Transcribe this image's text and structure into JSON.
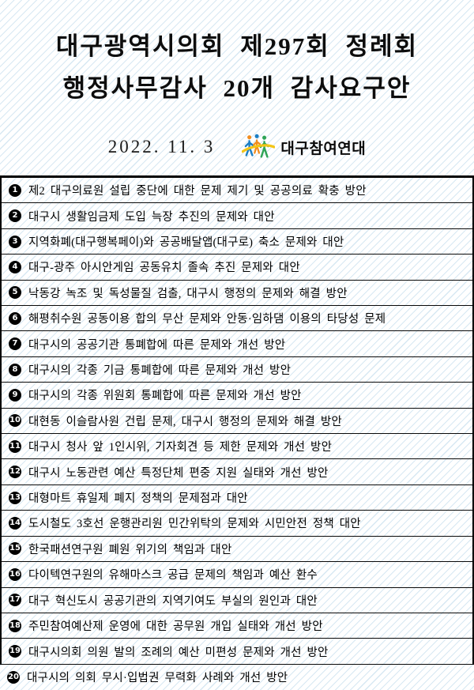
{
  "header": {
    "title_line1": "대구광역시의회 제297회 정례회",
    "title_line2": "행정사무감사 20개 감사요구안",
    "date": "2022. 11. 3",
    "logo_text": "대구참여연대"
  },
  "colors": {
    "background_stripe": "#d7e8f3",
    "table_border": "#000000",
    "badge_fill": "#000000",
    "badge_text": "#ffffff",
    "logo_blue": "#1c7fc5",
    "logo_green": "#2fa457",
    "logo_orange": "#f28c1e",
    "logo_yellow": "#f3c517"
  },
  "items": [
    {
      "number": "1",
      "text": "제2 대구의료원 설립 중단에 대한 문제 제기 및 공공의료 확충 방안"
    },
    {
      "number": "2",
      "text": "대구시 생활임금제 도입 늑장 추진의 문제와 대안"
    },
    {
      "number": "3",
      "text": "지역화폐(대구행복페이)와 공공배달앱(대구로) 축소 문제와 대안"
    },
    {
      "number": "4",
      "text": "대구-광주 아시안게임 공동유치 졸속 추진 문제와 대안"
    },
    {
      "number": "5",
      "text": "낙동강 녹조 및 독성물질 검출, 대구시 행정의 문제와 해결 방안"
    },
    {
      "number": "6",
      "text": "해평취수원 공동이용 합의 무산 문제와 안동·임하댐 이용의 타당성 문제"
    },
    {
      "number": "7",
      "text": "대구시의 공공기관 통폐합에 따른 문제와 개선 방안"
    },
    {
      "number": "8",
      "text": "대구시의 각종 기금 통폐합에 따른 문제와 개선 방안"
    },
    {
      "number": "9",
      "text": "대구시의 각종 위원회 통폐합에 따른 문제와 개선 방안"
    },
    {
      "number": "10",
      "text": "대현동 이슬람사원 건립 문제, 대구시 행정의 문제와 해결 방안"
    },
    {
      "number": "11",
      "text": "대구시 청사 앞 1인시위, 기자회견 등 제한 문제와 개선 방안"
    },
    {
      "number": "12",
      "text": "대구시 노동관련 예산 특정단체 편중 지원 실태와 개선 방안"
    },
    {
      "number": "13",
      "text": "대형마트 휴일제 폐지 정책의 문제점과 대안"
    },
    {
      "number": "14",
      "text": "도시철도 3호선 운행관리원 민간위탁의 문제와 시민안전 정책 대안"
    },
    {
      "number": "15",
      "text": "한국패션연구원 폐원 위기의 책임과 대안"
    },
    {
      "number": "16",
      "text": "다이텍연구원의 유해마스크 공급 문제의 책임과 예산 환수"
    },
    {
      "number": "17",
      "text": "대구 혁신도시 공공기관의 지역기여도 부실의 원인과 대안"
    },
    {
      "number": "18",
      "text": "주민참여예산제 운영에 대한 공무원 개입 실태와 개선 방안"
    },
    {
      "number": "19",
      "text": "대구시의회 의원 발의 조례의 예산 미편성 문제와 개선 방안"
    },
    {
      "number": "20",
      "text": "대구시의 의회 무시·입법권 무력화 사례와 개선 방안"
    }
  ]
}
